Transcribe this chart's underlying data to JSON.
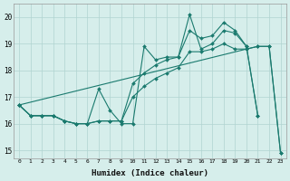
{
  "xlabel": "Humidex (Indice chaleur)",
  "bg_color": "#d6eeeb",
  "grid_color": "#b0d4d0",
  "line_color": "#1a7a6e",
  "xlim": [
    -0.5,
    23.5
  ],
  "ylim": [
    14.7,
    20.5
  ],
  "yticks": [
    15,
    16,
    17,
    18,
    19,
    20
  ],
  "xticks": [
    0,
    1,
    2,
    3,
    4,
    5,
    6,
    7,
    8,
    9,
    10,
    11,
    12,
    13,
    14,
    15,
    16,
    17,
    18,
    19,
    20,
    21,
    22,
    23
  ],
  "series": [
    [
      [
        0,
        16.7
      ],
      [
        1,
        16.3
      ],
      [
        2,
        16.3
      ],
      [
        3,
        16.3
      ],
      [
        4,
        16.1
      ],
      [
        5,
        16.0
      ],
      [
        6,
        16.0
      ],
      [
        7,
        17.3
      ],
      [
        8,
        16.5
      ],
      [
        9,
        16.0
      ],
      [
        10,
        16.0
      ],
      [
        11,
        18.9
      ],
      [
        12,
        18.4
      ],
      [
        13,
        18.5
      ],
      [
        14,
        18.5
      ],
      [
        15,
        20.1
      ],
      [
        16,
        18.8
      ],
      [
        17,
        19.0
      ],
      [
        18,
        19.5
      ],
      [
        19,
        19.4
      ],
      [
        20,
        18.9
      ],
      [
        21,
        16.3
      ]
    ],
    [
      [
        0,
        16.7
      ],
      [
        1,
        16.3
      ],
      [
        2,
        16.3
      ],
      [
        3,
        16.3
      ],
      [
        4,
        16.1
      ],
      [
        5,
        16.0
      ],
      [
        6,
        16.0
      ],
      [
        7,
        16.1
      ],
      [
        8,
        16.1
      ],
      [
        9,
        16.1
      ],
      [
        10,
        17.5
      ],
      [
        11,
        17.9
      ],
      [
        12,
        18.2
      ],
      [
        13,
        18.4
      ],
      [
        14,
        18.5
      ],
      [
        15,
        19.5
      ],
      [
        16,
        19.2
      ],
      [
        17,
        19.3
      ],
      [
        18,
        19.8
      ],
      [
        19,
        19.5
      ],
      [
        20,
        18.9
      ],
      [
        21,
        16.3
      ]
    ],
    [
      [
        0,
        16.7
      ],
      [
        1,
        16.3
      ],
      [
        2,
        16.3
      ],
      [
        3,
        16.3
      ],
      [
        4,
        16.1
      ],
      [
        5,
        16.0
      ],
      [
        6,
        16.0
      ],
      [
        7,
        16.1
      ],
      [
        8,
        16.1
      ],
      [
        9,
        16.1
      ],
      [
        10,
        17.0
      ],
      [
        11,
        17.4
      ],
      [
        12,
        17.7
      ],
      [
        13,
        17.9
      ],
      [
        14,
        18.1
      ],
      [
        15,
        18.7
      ],
      [
        16,
        18.7
      ],
      [
        17,
        18.8
      ],
      [
        18,
        19.0
      ],
      [
        19,
        18.8
      ],
      [
        20,
        18.8
      ],
      [
        21,
        18.9
      ],
      [
        22,
        18.9
      ],
      [
        23,
        14.9
      ]
    ],
    [
      [
        0,
        16.7
      ],
      [
        20,
        18.8
      ],
      [
        21,
        18.9
      ],
      [
        22,
        18.9
      ],
      [
        23,
        14.9
      ]
    ]
  ]
}
